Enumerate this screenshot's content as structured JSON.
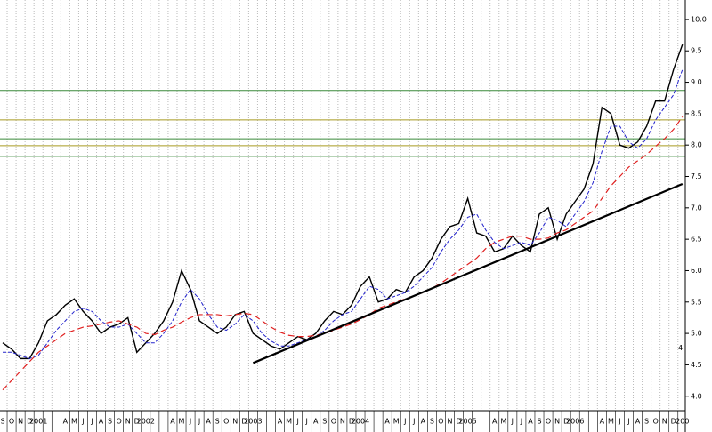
{
  "chart_data": {
    "type": "line",
    "categories": [
      "S",
      "O",
      "N",
      "D",
      "2001",
      null,
      null,
      "A",
      "M",
      "J",
      "J",
      "A",
      "S",
      "O",
      "N",
      "D",
      "2002",
      null,
      null,
      "A",
      "M",
      "J",
      "J",
      "A",
      "S",
      "O",
      "N",
      "D",
      "2003",
      null,
      null,
      "A",
      "M",
      "J",
      "J",
      "A",
      "S",
      "O",
      "N",
      "D",
      "2004",
      null,
      null,
      "A",
      "M",
      "J",
      "J",
      "A",
      "S",
      "O",
      "N",
      "D",
      "2005",
      null,
      null,
      "A",
      "M",
      "J",
      "J",
      "A",
      "S",
      "O",
      "N",
      "D",
      "2006",
      null,
      null,
      "A",
      "M",
      "J",
      "J",
      "A",
      "S",
      "O",
      "N",
      "D",
      "200"
    ],
    "series": [
      {
        "name": "price",
        "color": "#000000",
        "width": 1.4,
        "dash": "none",
        "values": [
          4.85,
          4.75,
          4.6,
          4.6,
          4.85,
          5.2,
          5.3,
          5.45,
          5.55,
          5.35,
          5.2,
          5.0,
          5.1,
          5.15,
          5.25,
          4.7,
          4.85,
          5.0,
          5.2,
          5.5,
          6.0,
          5.7,
          5.2,
          5.1,
          5.0,
          5.1,
          5.3,
          5.35,
          5.0,
          4.9,
          4.8,
          4.75,
          4.85,
          4.95,
          4.9,
          5.0,
          5.2,
          5.35,
          5.3,
          5.45,
          5.75,
          5.9,
          5.5,
          5.55,
          5.7,
          5.65,
          5.9,
          6.0,
          6.2,
          6.5,
          6.7,
          6.75,
          7.15,
          6.6,
          6.55,
          6.3,
          6.35,
          6.55,
          6.4,
          6.3,
          6.9,
          7.0,
          6.5,
          6.9,
          7.1,
          7.3,
          7.7,
          8.6,
          8.5,
          8.0,
          7.95,
          8.05,
          8.3,
          8.7,
          8.7,
          9.2,
          9.6
        ]
      },
      {
        "name": "short-average",
        "color": "#2222cc",
        "width": 1,
        "dash": "4 2",
        "values": [
          4.7,
          4.7,
          4.65,
          4.6,
          4.65,
          4.85,
          5.05,
          5.2,
          5.35,
          5.4,
          5.35,
          5.2,
          5.1,
          5.1,
          5.15,
          5.0,
          4.85,
          4.85,
          5.0,
          5.2,
          5.5,
          5.7,
          5.55,
          5.3,
          5.1,
          5.05,
          5.15,
          5.3,
          5.2,
          5.0,
          4.88,
          4.8,
          4.8,
          4.85,
          4.9,
          4.95,
          5.05,
          5.2,
          5.3,
          5.35,
          5.55,
          5.75,
          5.7,
          5.55,
          5.6,
          5.65,
          5.75,
          5.9,
          6.05,
          6.3,
          6.5,
          6.65,
          6.85,
          6.9,
          6.65,
          6.45,
          6.35,
          6.4,
          6.45,
          6.4,
          6.6,
          6.85,
          6.8,
          6.7,
          6.9,
          7.1,
          7.4,
          7.9,
          8.3,
          8.3,
          8.05,
          7.95,
          8.1,
          8.4,
          8.6,
          8.8,
          9.2
        ]
      },
      {
        "name": "long-average",
        "color": "#e02020",
        "width": 1.2,
        "dash": "7 4",
        "values": [
          4.1,
          4.25,
          4.4,
          4.55,
          4.7,
          4.8,
          4.9,
          5.0,
          5.05,
          5.1,
          5.12,
          5.15,
          5.18,
          5.2,
          5.15,
          5.1,
          5.0,
          4.98,
          5.05,
          5.1,
          5.18,
          5.25,
          5.3,
          5.3,
          5.3,
          5.28,
          5.3,
          5.32,
          5.3,
          5.2,
          5.1,
          5.02,
          4.97,
          4.95,
          4.95,
          4.97,
          5.0,
          5.05,
          5.1,
          5.15,
          5.22,
          5.3,
          5.4,
          5.45,
          5.5,
          5.55,
          5.6,
          5.65,
          5.72,
          5.8,
          5.9,
          6.0,
          6.1,
          6.2,
          6.35,
          6.45,
          6.5,
          6.55,
          6.55,
          6.5,
          6.5,
          6.52,
          6.6,
          6.65,
          6.75,
          6.85,
          6.95,
          7.15,
          7.35,
          7.5,
          7.65,
          7.75,
          7.85,
          7.98,
          8.1,
          8.25,
          8.45
        ]
      }
    ],
    "levels": [
      {
        "value": 8.87,
        "color": "#3a8a3a"
      },
      {
        "value": 8.4,
        "color": "#a89a20"
      },
      {
        "value": 8.1,
        "color": "#3a8a3a"
      },
      {
        "value": 7.99,
        "color": "#a89a20"
      },
      {
        "value": 7.82,
        "color": "#3a8a3a"
      }
    ],
    "trendline": {
      "x": [
        28,
        76
      ],
      "values": [
        4.53,
        7.38
      ],
      "color": "#000000"
    },
    "annotation": {
      "text": "4",
      "value": 4.77,
      "color": "#e05020"
    },
    "ylim": [
      3.77,
      10.31
    ],
    "yticks": [
      {
        "value": 4,
        "label": "4.0"
      },
      4.5,
      {
        "value": 5,
        "label": "5.0"
      },
      5.5,
      {
        "value": 6,
        "label": "6.0"
      },
      6.5,
      {
        "value": 7,
        "label": "7.0"
      },
      7.5,
      {
        "value": 8,
        "label": "8.0"
      },
      8.5,
      {
        "value": 9,
        "label": "9.0"
      },
      9.5,
      {
        "value": 10,
        "label": "10.0"
      }
    ],
    "grid": true
  }
}
